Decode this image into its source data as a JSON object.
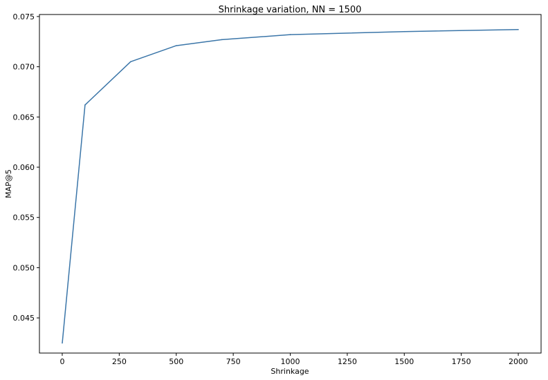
{
  "chart_data": {
    "type": "line",
    "title": "Shrinkage variation, NN = 1500",
    "xlabel": "Shrinkage",
    "ylabel": "MAP@5",
    "xlim": [
      -100,
      2100
    ],
    "ylim": [
      0.0415,
      0.0752
    ],
    "xticks": [
      0,
      250,
      500,
      750,
      1000,
      1250,
      1500,
      1750,
      2000
    ],
    "xtick_labels": [
      "0",
      "250",
      "500",
      "750",
      "1000",
      "1250",
      "1500",
      "1750",
      "2000"
    ],
    "yticks": [
      0.045,
      0.05,
      0.055,
      0.06,
      0.065,
      0.07,
      0.075
    ],
    "ytick_labels": [
      "0.045",
      "0.050",
      "0.055",
      "0.060",
      "0.065",
      "0.070",
      "0.075"
    ],
    "grid": false,
    "colors": {
      "line": "#3a75a8",
      "axes": "#000000"
    },
    "series": [
      {
        "x": [
          0,
          100,
          300,
          500,
          700,
          1000,
          1500,
          2000
        ],
        "y": [
          0.0425,
          0.0662,
          0.0705,
          0.0721,
          0.0727,
          0.0732,
          0.0735,
          0.0737
        ]
      }
    ]
  }
}
